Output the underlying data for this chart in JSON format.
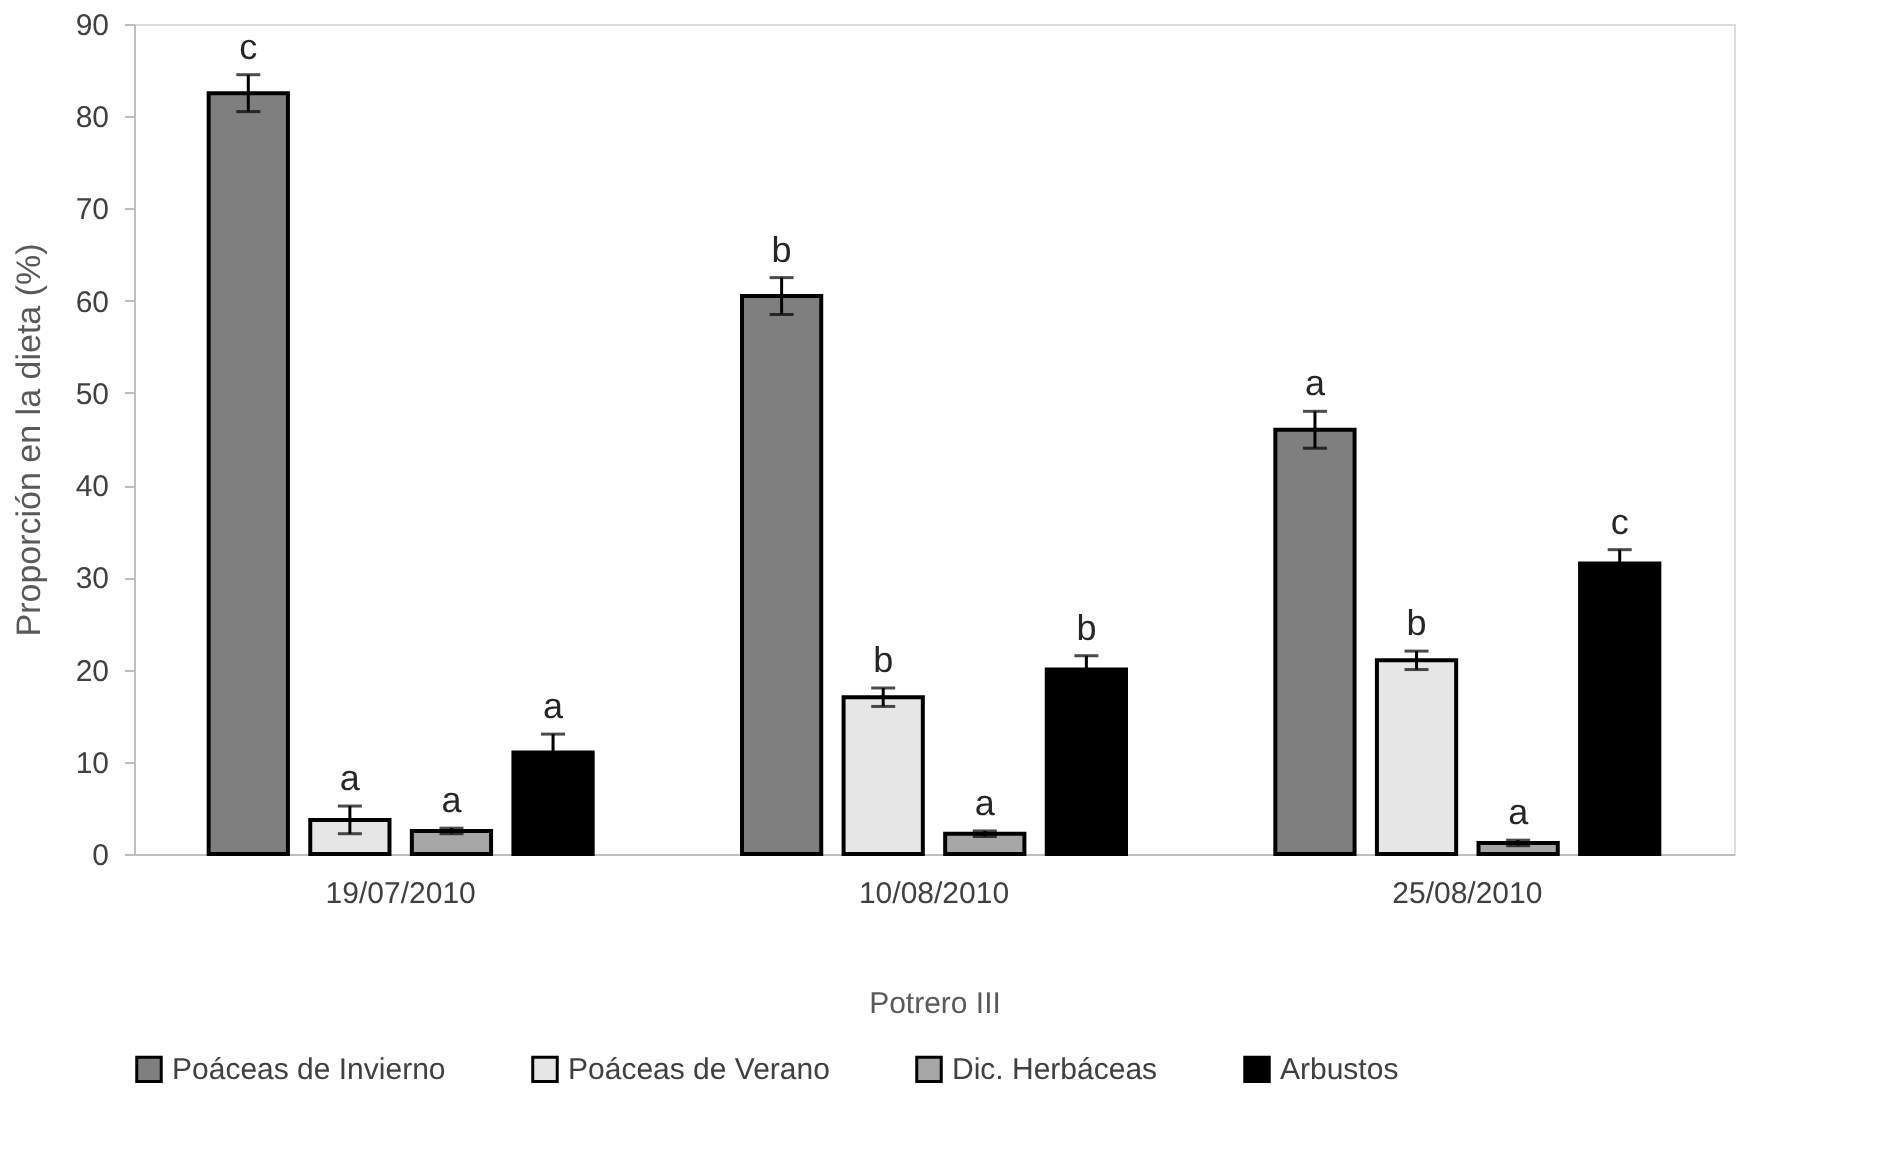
{
  "chart_data": {
    "type": "bar",
    "xlabel": "Potrero III",
    "ylabel": "Proporción en la dieta (%)",
    "categories": [
      "19/07/2010",
      "10/08/2010",
      "25/08/2010"
    ],
    "series": [
      {
        "name": "Poáceas de Invierno",
        "color": "#7f7f7f",
        "values": [
          82.5,
          60.5,
          46
        ],
        "errors": [
          2,
          2,
          2
        ],
        "value_labels": [
          "c",
          "b",
          "a"
        ]
      },
      {
        "name": "Poáceas de Verano",
        "color": "#e6e6e6",
        "values": [
          3.7,
          17,
          21
        ],
        "errors": [
          1.5,
          1,
          1
        ],
        "value_labels": [
          "a",
          "b",
          "b"
        ]
      },
      {
        "name": "Dic. Herbáceas",
        "color": "#a6a6a6",
        "values": [
          2.5,
          2.2,
          1.2
        ],
        "errors": [
          0.3,
          0.3,
          0.3
        ],
        "value_labels": [
          "a",
          "a",
          "a"
        ]
      },
      {
        "name": "Arbustos",
        "color": "#000000",
        "values": [
          11,
          20,
          31.5
        ],
        "errors": [
          2,
          1.5,
          1.5
        ],
        "value_labels": [
          "a",
          "b",
          "c"
        ]
      }
    ],
    "ylim": [
      0,
      90
    ],
    "yticks": [
      0,
      10,
      20,
      30,
      40,
      50,
      60,
      70,
      80,
      90
    ],
    "grid": false,
    "legend": "bottom"
  }
}
